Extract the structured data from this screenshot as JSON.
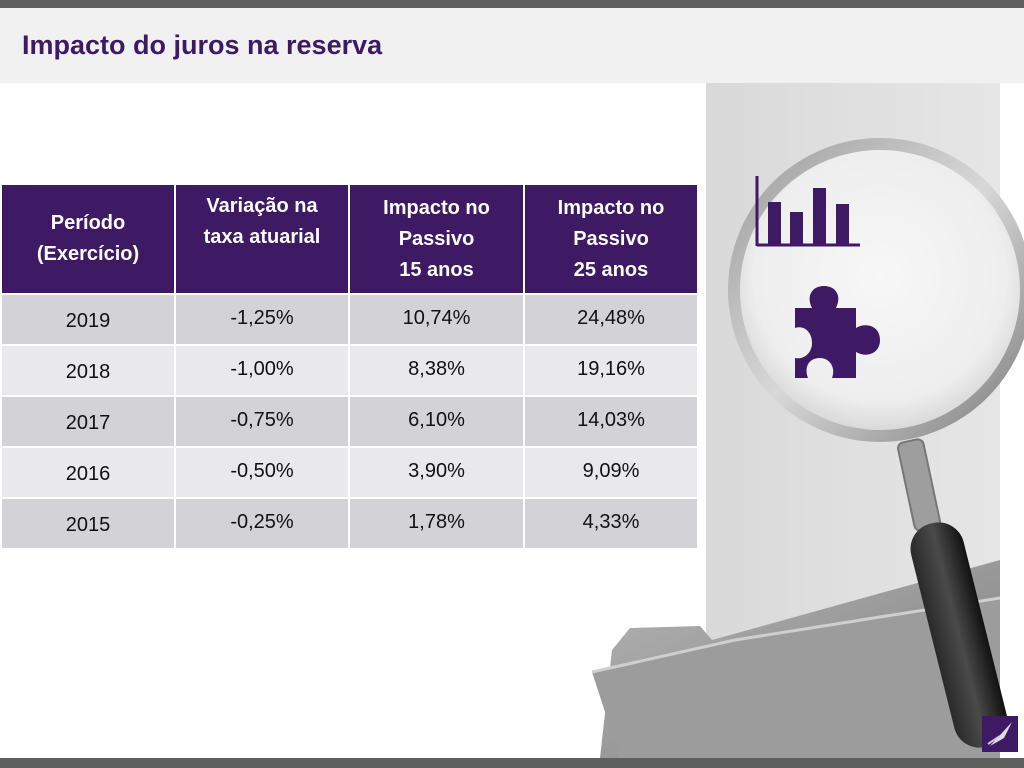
{
  "title": "Impacto do juros na reserva",
  "table": {
    "headers": [
      [
        "Período",
        "(Exercício)"
      ],
      [
        "Variação na",
        "taxa atuarial"
      ],
      [
        "Impacto no",
        "Passivo",
        "15 anos"
      ],
      [
        "Impacto no",
        "Passivo",
        "25 anos"
      ]
    ],
    "rows": [
      [
        "2019",
        "-1,25%",
        "10,74%",
        "24,48%"
      ],
      [
        "2018",
        "-1,00%",
        "8,38%",
        "19,16%"
      ],
      [
        "2017",
        "-0,75%",
        "6,10%",
        "14,03%"
      ],
      [
        "2016",
        "-0,50%",
        "3,90%",
        "9,09%"
      ],
      [
        "2015",
        "-0,25%",
        "1,78%",
        "4,33%"
      ]
    ]
  },
  "colors": {
    "brand_purple": "#3d1a63",
    "row_dark": "#d3d2d6",
    "row_light": "#e9e8ea",
    "band_gray": "#f1f1f1",
    "bar_gray": "#5f5f5f"
  },
  "icons": [
    "bar-chart-icon",
    "puzzle-piece-icon",
    "magnifying-glass-icon",
    "folder-icon",
    "logo-icon"
  ]
}
